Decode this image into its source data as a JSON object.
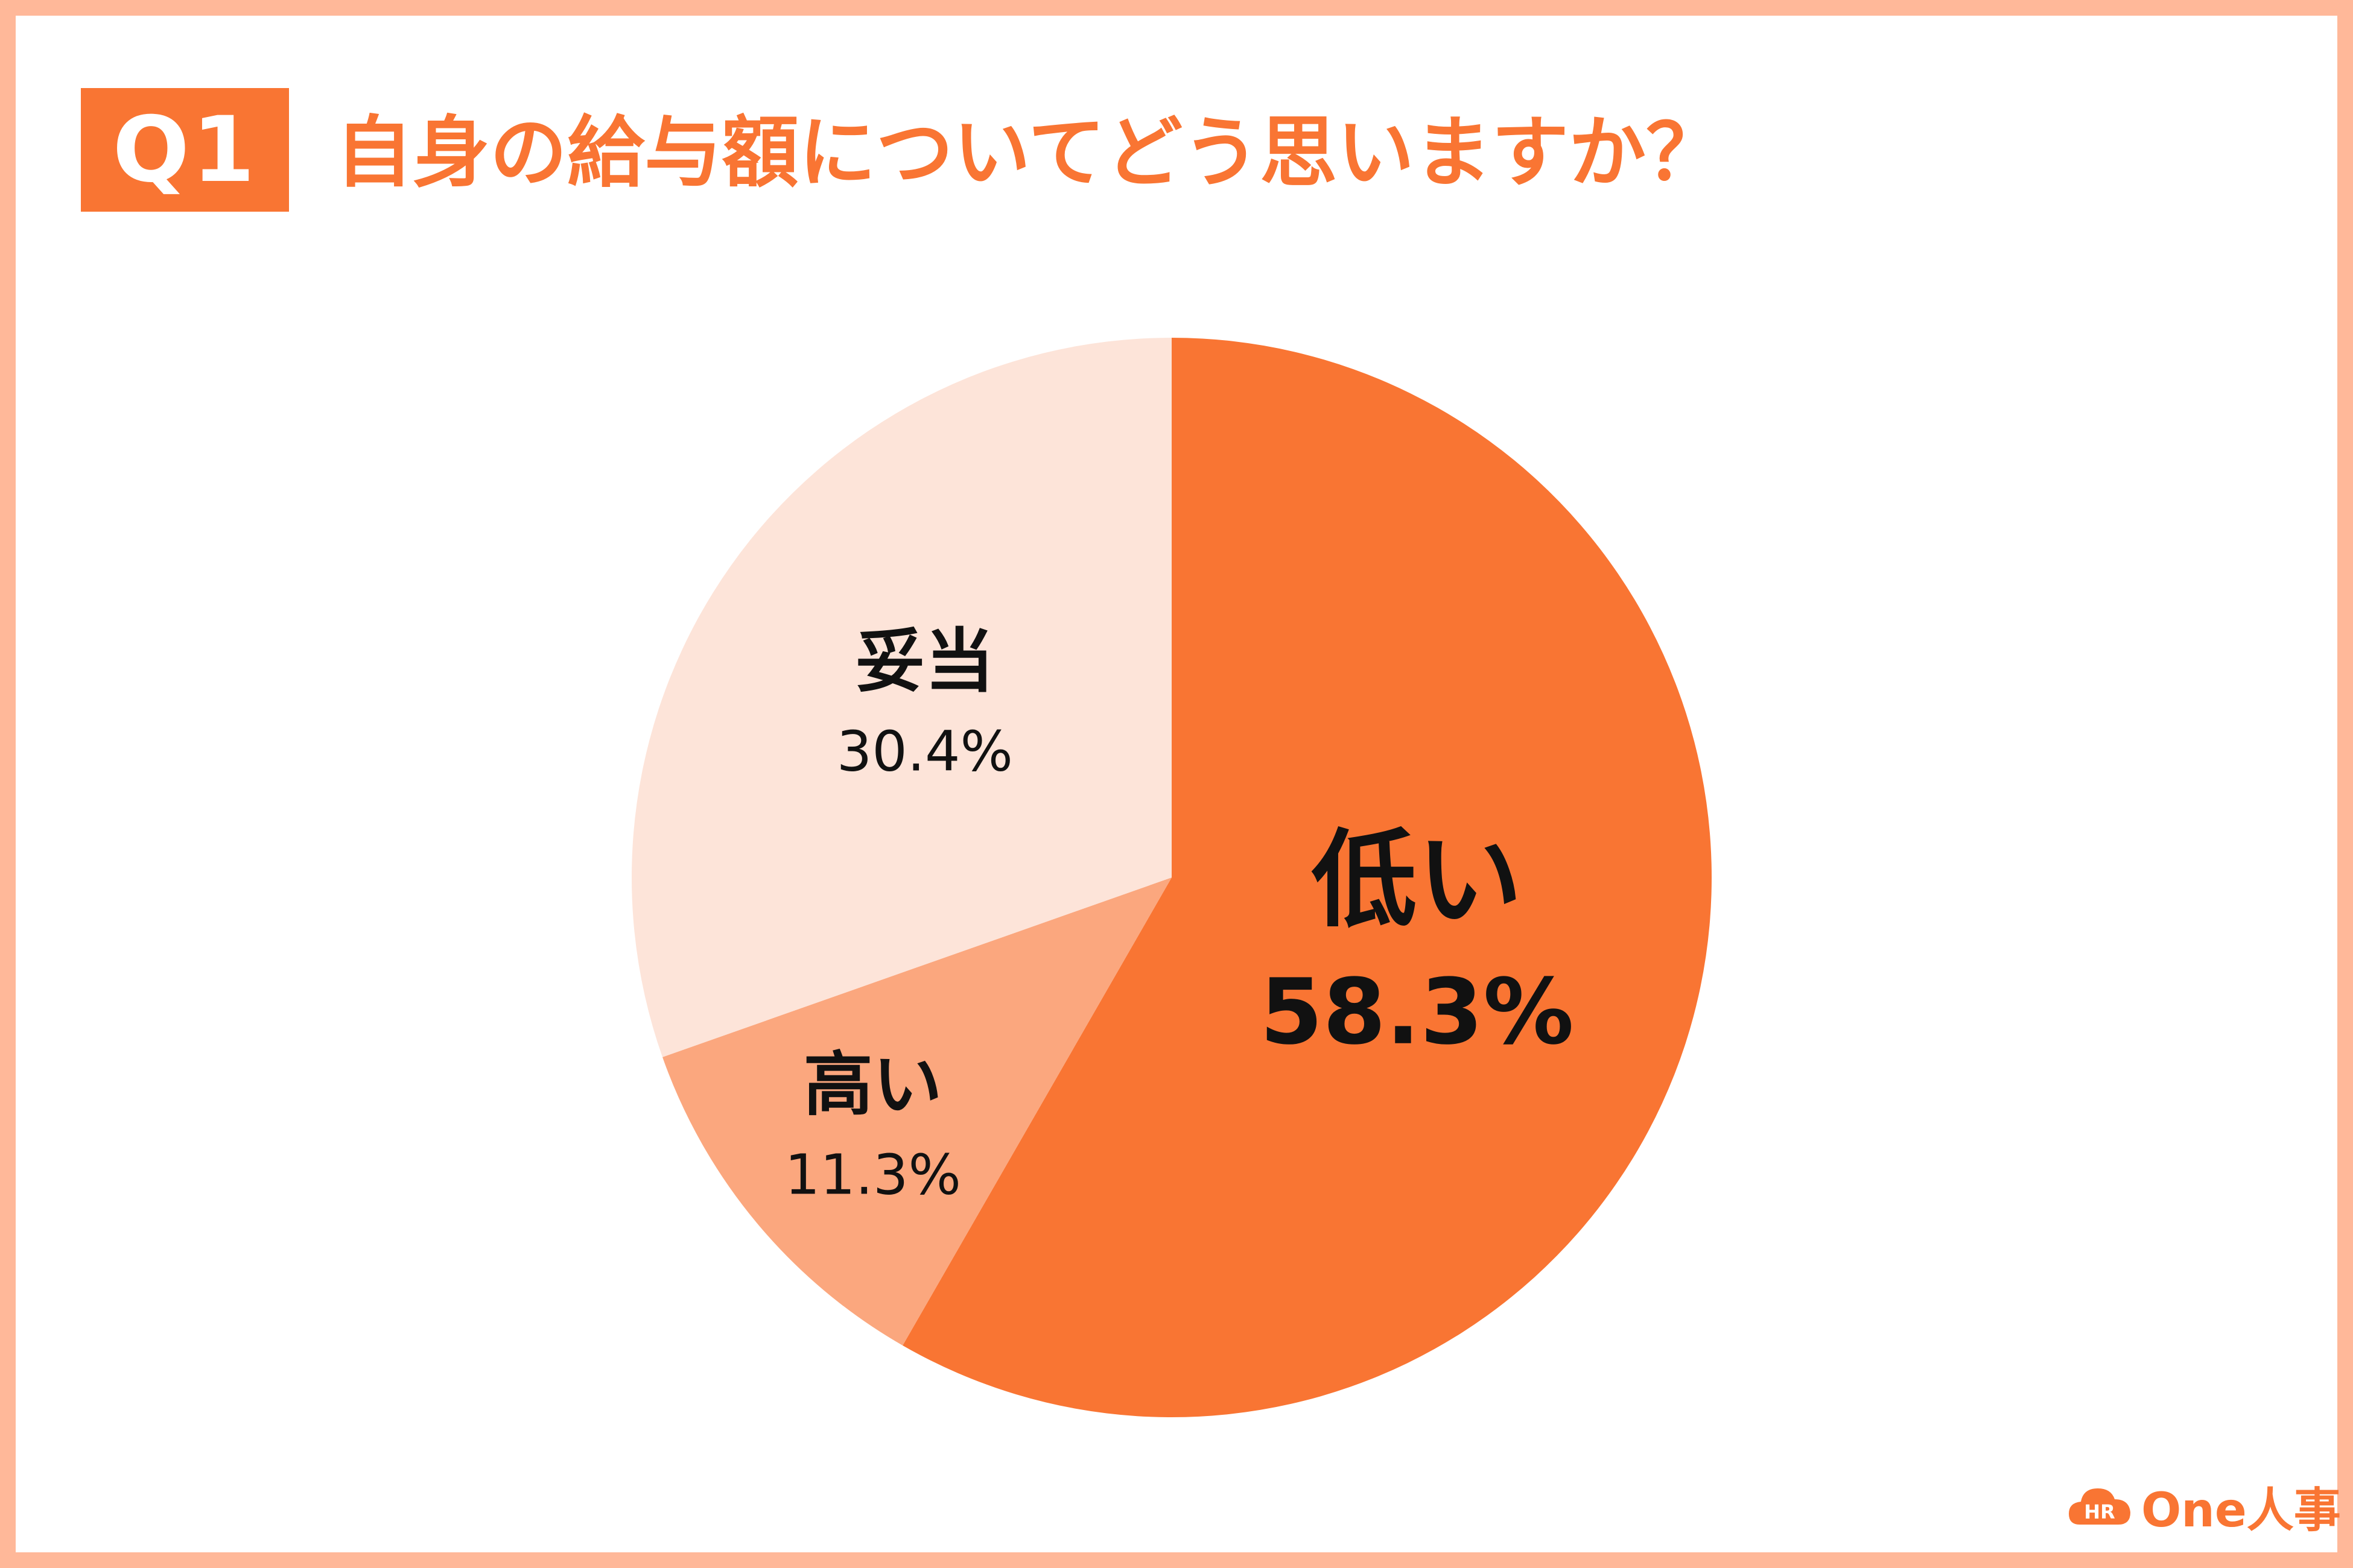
{
  "header": {
    "badge": "Q1",
    "title": "自身の給与額についてどう思いますか？"
  },
  "chart_data": {
    "type": "pie",
    "categories": [
      "低い",
      "高い",
      "妥当"
    ],
    "values": [
      58.3,
      11.3,
      30.4
    ],
    "value_labels": [
      "58.3%",
      "11.3%",
      "30.4%"
    ],
    "colors": [
      "#F97533",
      "#FBA77E",
      "#FDE4D9"
    ],
    "start_angle": "12 o'clock",
    "direction": "clockwise"
  },
  "logo": {
    "icon": "hr-cloud-icon",
    "icon_text": "HR",
    "text": "One人事"
  }
}
